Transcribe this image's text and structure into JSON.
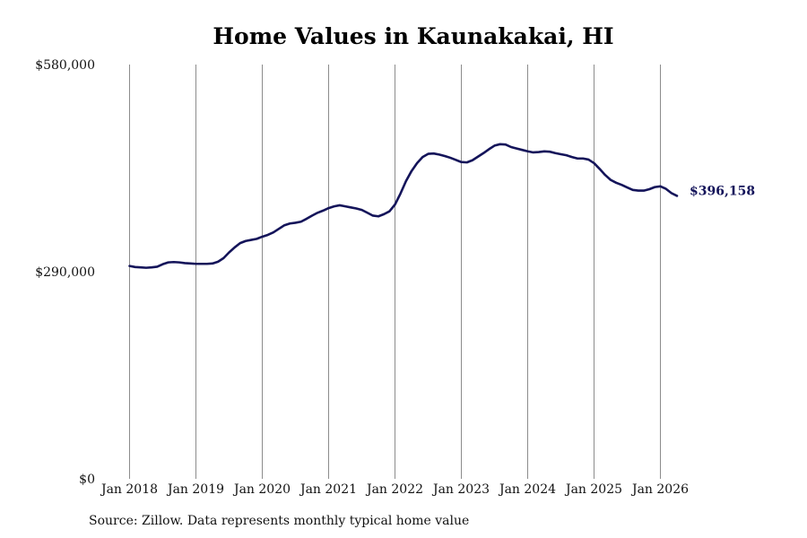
{
  "chart_data": {
    "type": "line",
    "title": "Home Values in Kaunakakai, HI",
    "xlabel": "",
    "ylabel": "",
    "ylim": [
      0,
      580000
    ],
    "y_ticks": [
      0,
      290000,
      580000
    ],
    "y_tick_labels": [
      "$0",
      "$290,000",
      "$580,000"
    ],
    "x_ticks": [
      "Jan 2018",
      "Jan 2019",
      "Jan 2020",
      "Jan 2021",
      "Jan 2022",
      "Jan 2023",
      "Jan 2024",
      "Jan 2025",
      "Jan 2026"
    ],
    "grid": {
      "vertical": true,
      "horizontal": false
    },
    "line_color": "#14145a",
    "grid_color": "#8c8c8c",
    "end_label": "$396,158",
    "series": [
      {
        "x_start": "2018-01",
        "interval": "monthly",
        "values": [
          298000,
          296500,
          296000,
          295500,
          296000,
          297000,
          300500,
          303000,
          303500,
          303000,
          302000,
          301500,
          301000,
          301000,
          301000,
          301500,
          304000,
          309000,
          317000,
          324000,
          330000,
          333000,
          334500,
          336000,
          339000,
          341500,
          345000,
          350000,
          355000,
          357500,
          358500,
          360000,
          364000,
          368500,
          372500,
          375500,
          379000,
          381500,
          383000,
          381500,
          380000,
          378500,
          376500,
          372500,
          368500,
          367500,
          370500,
          374500,
          384000,
          399500,
          417000,
          431000,
          442000,
          450500,
          455000,
          455500,
          454000,
          452000,
          449500,
          446500,
          443500,
          443000,
          446000,
          451000,
          456000,
          461500,
          466500,
          468500,
          468000,
          464500,
          462500,
          460500,
          458500,
          457000,
          457500,
          458500,
          458000,
          456000,
          454500,
          453000,
          450500,
          448500,
          448500,
          447000,
          442000,
          434000,
          425500,
          418500,
          414500,
          411500,
          408000,
          404500,
          403500,
          403500,
          405500,
          408500,
          409500,
          406000,
          400000,
          396158
        ]
      }
    ]
  },
  "source_note": "Source: Zillow. Data represents monthly typical home value"
}
